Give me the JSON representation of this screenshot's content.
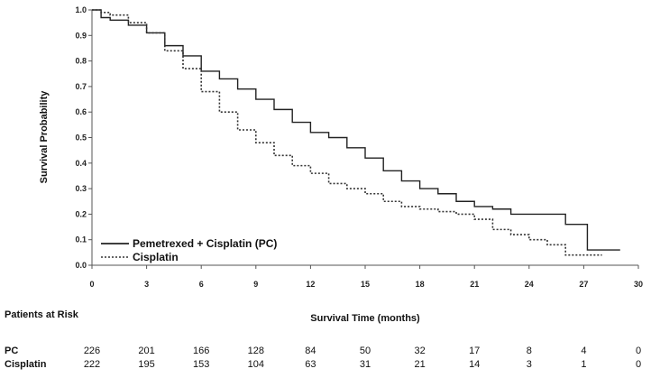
{
  "chart_data": {
    "type": "line",
    "xlabel": "Survival Time (months)",
    "ylabel": "Survival Probability",
    "xlim": [
      0,
      30
    ],
    "ylim": [
      0,
      1.0
    ],
    "x_ticks": [
      "0",
      "3",
      "6",
      "9",
      "12",
      "15",
      "18",
      "21",
      "24",
      "27",
      "30"
    ],
    "y_ticks": [
      "0.0",
      "0.1",
      "0.2",
      "0.3",
      "0.4",
      "0.5",
      "0.6",
      "0.7",
      "0.8",
      "0.9",
      "1.0"
    ],
    "grid": false,
    "legend_position": "bottom-left",
    "series": [
      {
        "name": "Pemetrexed + Cisplatin (PC)",
        "style": "solid",
        "color": "#222222",
        "x": [
          0,
          0.5,
          1,
          2,
          3,
          4,
          5,
          6,
          7,
          8,
          9,
          10,
          11,
          12,
          13,
          14,
          15,
          16,
          17,
          18,
          19,
          20,
          21,
          22,
          23,
          24,
          25,
          26,
          27,
          27.2,
          28,
          29
        ],
        "y": [
          1.0,
          0.97,
          0.96,
          0.94,
          0.91,
          0.86,
          0.82,
          0.76,
          0.73,
          0.69,
          0.65,
          0.61,
          0.56,
          0.52,
          0.5,
          0.46,
          0.42,
          0.37,
          0.33,
          0.3,
          0.28,
          0.25,
          0.23,
          0.22,
          0.2,
          0.2,
          0.2,
          0.16,
          0.16,
          0.06,
          0.06,
          0.06
        ]
      },
      {
        "name": "Cisplatin",
        "style": "dotted",
        "color": "#333333",
        "x": [
          0,
          0.5,
          1,
          2,
          3,
          4,
          5,
          6,
          7,
          8,
          9,
          10,
          11,
          12,
          13,
          14,
          15,
          16,
          17,
          18,
          19,
          20,
          21,
          22,
          23,
          24,
          25,
          26,
          27,
          28
        ],
        "y": [
          1.0,
          0.99,
          0.98,
          0.95,
          0.91,
          0.84,
          0.77,
          0.68,
          0.6,
          0.53,
          0.48,
          0.43,
          0.39,
          0.36,
          0.32,
          0.3,
          0.28,
          0.25,
          0.23,
          0.22,
          0.21,
          0.2,
          0.18,
          0.14,
          0.12,
          0.1,
          0.08,
          0.04,
          0.04,
          0.04
        ]
      }
    ],
    "risk_table": {
      "title": "Patients at Risk",
      "times": [
        0,
        3,
        6,
        9,
        12,
        15,
        18,
        21,
        24,
        27,
        30
      ],
      "rows": [
        {
          "label": "PC",
          "values": [
            226,
            201,
            166,
            128,
            84,
            50,
            32,
            17,
            8,
            4,
            0
          ]
        },
        {
          "label": "Cisplatin",
          "values": [
            222,
            195,
            153,
            104,
            63,
            31,
            21,
            14,
            3,
            1,
            0
          ]
        }
      ]
    }
  }
}
